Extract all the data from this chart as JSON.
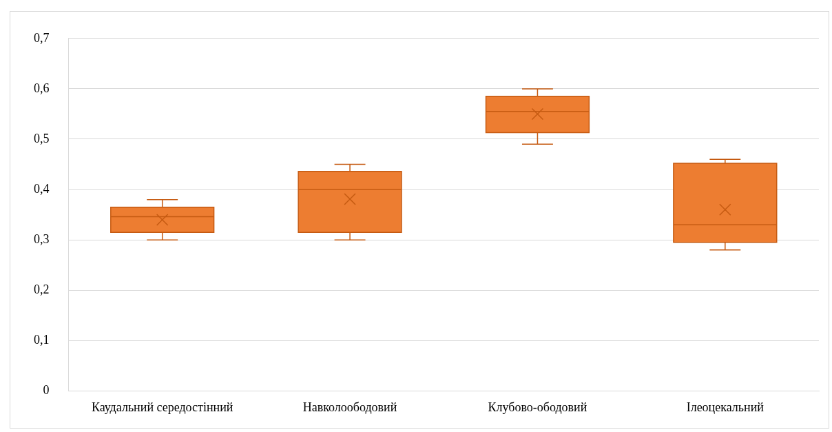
{
  "chart_data": {
    "type": "box",
    "categories": [
      "Каудальний середостінний",
      "Навколоободовий",
      "Клубово-ободовий",
      "Ілеоцекальний"
    ],
    "color": "#ed7d31",
    "boxes": [
      {
        "low": 0.3,
        "q1": 0.315,
        "median": 0.346,
        "q3": 0.365,
        "high": 0.38,
        "mean": 0.34
      },
      {
        "low": 0.3,
        "q1": 0.315,
        "median": 0.4,
        "q3": 0.436,
        "high": 0.45,
        "mean": 0.381
      },
      {
        "low": 0.49,
        "q1": 0.513,
        "median": 0.555,
        "q3": 0.585,
        "high": 0.6,
        "mean": 0.55
      },
      {
        "low": 0.28,
        "q1": 0.295,
        "median": 0.33,
        "q3": 0.452,
        "high": 0.46,
        "mean": 0.36
      }
    ],
    "ylim": [
      0,
      0.7
    ],
    "yticks": [
      0,
      {
        "value": 0.1,
        "label": "0,1"
      },
      {
        "value": 0.2,
        "label": "0,2"
      },
      {
        "value": 0.3,
        "label": "0,3"
      },
      {
        "value": 0.4,
        "label": "0,4"
      },
      {
        "value": 0.5,
        "label": "0,5"
      },
      {
        "value": 0.6,
        "label": "0,6"
      },
      {
        "value": 0.7,
        "label": "0,7"
      }
    ],
    "grid": "y"
  }
}
